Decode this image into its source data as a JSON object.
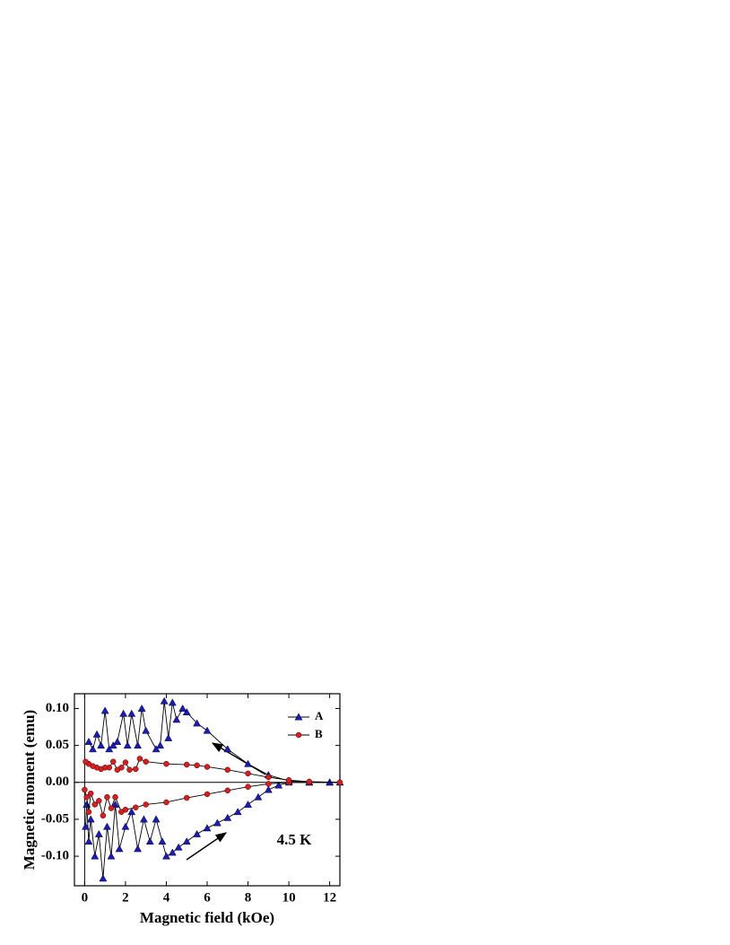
{
  "chart_data": {
    "type": "line",
    "xlabel": "Magnetic field (kOe)",
    "ylabel": "Magnetic moment (emu)",
    "annotation": "4.5 K",
    "legend": "upper right",
    "xlim": [
      -0.5,
      12.5
    ],
    "ylim": [
      -0.14,
      0.12
    ],
    "xticks": [
      0,
      2,
      4,
      6,
      8,
      10,
      12
    ],
    "yticks": [
      {
        "value": -0.1,
        "label": "-0.10"
      },
      {
        "value": -0.05,
        "label": "-0.05"
      },
      {
        "value": 0,
        "label": "0.00"
      },
      {
        "value": 0.05,
        "label": "0.05"
      },
      {
        "value": 0.1,
        "label": "0.10"
      }
    ],
    "series": [
      {
        "name": "A",
        "color": "#1c1cb0",
        "marker": "triangle",
        "x": [
          0.05,
          0.1,
          0.2,
          0.3,
          0.5,
          0.7,
          0.9,
          1.1,
          1.3,
          1.5,
          1.7,
          2.0,
          2.3,
          2.6,
          2.9,
          3.2,
          3.5,
          3.8,
          4.0,
          4.3,
          4.6,
          5.0,
          5.5,
          6.0,
          6.5,
          7.0,
          7.5,
          8.0,
          8.5,
          9.0,
          9.5,
          10.0,
          11.0,
          12.0,
          12.5,
          12.0,
          11.0,
          10.0,
          9.0,
          8.0,
          7.0,
          6.0,
          5.5,
          5.0,
          4.8,
          4.5,
          4.3,
          4.1,
          3.9,
          3.7,
          3.5,
          3.0,
          2.8,
          2.6,
          2.3,
          2.1,
          1.9,
          1.6,
          1.4,
          1.2,
          1.0,
          0.8,
          0.6,
          0.4,
          0.2
        ],
        "values": [
          -0.06,
          -0.03,
          -0.08,
          -0.05,
          -0.1,
          -0.07,
          -0.13,
          -0.06,
          -0.1,
          -0.03,
          -0.09,
          -0.06,
          -0.04,
          -0.09,
          -0.05,
          -0.08,
          -0.05,
          -0.08,
          -0.1,
          -0.095,
          -0.088,
          -0.08,
          -0.07,
          -0.062,
          -0.055,
          -0.048,
          -0.04,
          -0.03,
          -0.02,
          -0.01,
          -0.004,
          0,
          0,
          0,
          0,
          0,
          0,
          0.002,
          0.01,
          0.025,
          0.045,
          0.07,
          0.08,
          0.095,
          0.1,
          0.085,
          0.108,
          0.06,
          0.11,
          0.05,
          0.045,
          0.07,
          0.1,
          0.05,
          0.093,
          0.05,
          0.093,
          0.055,
          0.05,
          0.045,
          0.097,
          0.05,
          0.065,
          0.045,
          0.055
        ]
      },
      {
        "name": "B",
        "color": "#d42020",
        "marker": "circle",
        "x": [
          0,
          0.1,
          0.2,
          0.3,
          0.5,
          0.7,
          0.9,
          1.1,
          1.3,
          1.5,
          1.8,
          2.0,
          2.5,
          3.0,
          4.0,
          5.0,
          6.0,
          7.0,
          8.0,
          9.0,
          10.0,
          11.0,
          12.5,
          11.0,
          10.0,
          9.0,
          8.0,
          7.0,
          6.0,
          5.5,
          5.0,
          4.0,
          3.0,
          2.7,
          2.5,
          2.2,
          2.0,
          1.8,
          1.6,
          1.4,
          1.2,
          1.0,
          0.8,
          0.6,
          0.4,
          0.2,
          0.05
        ],
        "values": [
          -0.01,
          -0.02,
          -0.04,
          -0.015,
          -0.03,
          -0.025,
          -0.045,
          -0.02,
          -0.035,
          -0.02,
          -0.04,
          -0.037,
          -0.034,
          -0.03,
          -0.027,
          -0.021,
          -0.016,
          -0.011,
          -0.006,
          -0.002,
          0,
          0,
          0,
          0.001,
          0.003,
          0.007,
          0.012,
          0.017,
          0.021,
          0.023,
          0.024,
          0.025,
          0.028,
          0.032,
          0.018,
          0.017,
          0.027,
          0.02,
          0.017,
          0.028,
          0.02,
          0.02,
          0.018,
          0.02,
          0.022,
          0.025,
          0.028
        ]
      }
    ]
  }
}
